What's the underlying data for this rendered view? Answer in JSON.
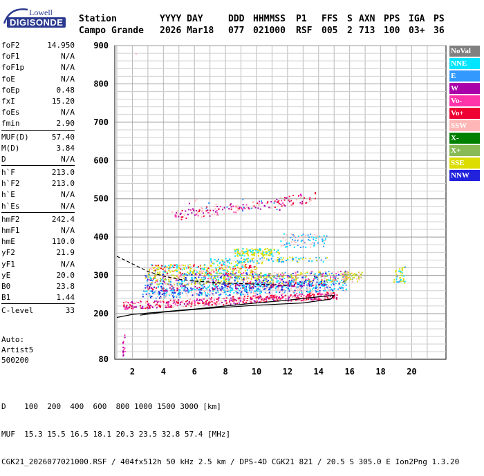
{
  "logo": {
    "line1": "Lowell",
    "line2": "DIGISONDE"
  },
  "header": {
    "col1": {
      "label": "Station",
      "value": "Campo Grande"
    },
    "col2": {
      "label": "YYYY DAY",
      "value": "2026 Mar18"
    },
    "col3": {
      "label": "DDD",
      "value": "077"
    },
    "col4": {
      "label": "HHMMSS",
      "value": "021000"
    },
    "col5": {
      "label": "P1",
      "value": "RSF"
    },
    "col6": {
      "label": "FFS",
      "value": "005"
    },
    "col7": {
      "label": "S",
      "value": "2"
    },
    "col8": {
      "label": "AXN",
      "value": "713"
    },
    "col9": {
      "label": "PPS",
      "value": "100"
    },
    "col10": {
      "label": "IGA",
      "value": "03+"
    },
    "col11": {
      "label": "PS",
      "value": "36"
    }
  },
  "params": {
    "g1": [
      {
        "k": "foF2",
        "v": "14.950"
      },
      {
        "k": "foF1",
        "v": "N/A"
      },
      {
        "k": "foF1p",
        "v": "N/A"
      },
      {
        "k": "foE",
        "v": "N/A"
      },
      {
        "k": "foEp",
        "v": "0.48"
      },
      {
        "k": "fxI",
        "v": "15.20"
      },
      {
        "k": "foEs",
        "v": "N/A"
      },
      {
        "k": "fmin",
        "v": "2.90"
      }
    ],
    "g2": [
      {
        "k": "MUF(D)",
        "v": "57.40"
      },
      {
        "k": "M(D)",
        "v": "3.84"
      },
      {
        "k": "D",
        "v": "N/A"
      }
    ],
    "g3": [
      {
        "k": "h`F",
        "v": "213.0"
      },
      {
        "k": "h`F2",
        "v": "213.0"
      },
      {
        "k": "h`E",
        "v": "N/A"
      },
      {
        "k": "h`Es",
        "v": "N/A"
      }
    ],
    "g4": [
      {
        "k": "hmF2",
        "v": "242.4"
      },
      {
        "k": "hmF1",
        "v": "N/A"
      },
      {
        "k": "hmE",
        "v": "110.0"
      },
      {
        "k": "yF2",
        "v": "21.9"
      },
      {
        "k": "yF1",
        "v": "N/A"
      },
      {
        "k": "yE",
        "v": "20.0"
      },
      {
        "k": "B0",
        "v": "23.8"
      },
      {
        "k": "B1",
        "v": "1.44"
      }
    ],
    "g5": [
      {
        "k": "C-level",
        "v": "33"
      }
    ]
  },
  "auto": {
    "l1": "Auto:",
    "l2": "Artist5",
    "l3": "500200"
  },
  "legend": [
    {
      "label": "NoVal",
      "color": "#808080"
    },
    {
      "label": "NNE",
      "color": "#00e5ff"
    },
    {
      "label": "E",
      "color": "#3399ff"
    },
    {
      "label": "W",
      "color": "#aa00aa"
    },
    {
      "label": "Vo-",
      "color": "#ff33aa"
    },
    {
      "label": "Vo+",
      "color": "#ee0033"
    },
    {
      "label": "SSW",
      "color": "#ffb6b6"
    },
    {
      "label": "X-",
      "color": "#008000"
    },
    {
      "label": "X+",
      "color": "#88bb55"
    },
    {
      "label": "SSE",
      "color": "#dddd00"
    },
    {
      "label": "NNW",
      "color": "#2222dd"
    }
  ],
  "axes": {
    "y_ticks": [
      "900",
      "800",
      "700",
      "600",
      "500",
      "400",
      "300",
      "200",
      "80"
    ],
    "x_ticks": [
      "2",
      "4",
      "6",
      "8",
      "10",
      "12",
      "14",
      "16",
      "18",
      "20"
    ]
  },
  "bottom": {
    "d_line": "D    100  200  400  600  800 1000 1500 3000 [km]",
    "muf_line": "MUF  15.3 15.5 16.5 18.1 20.3 23.5 32.8 57.4 [MHz]",
    "file_line": "CGK21_2026077021000.RSF / 404fx512h 50 kHz 2.5 km / DPS-4D CGK21 821 / 20.5 S 305.0 E Ion2Png 1.3.20"
  }
}
